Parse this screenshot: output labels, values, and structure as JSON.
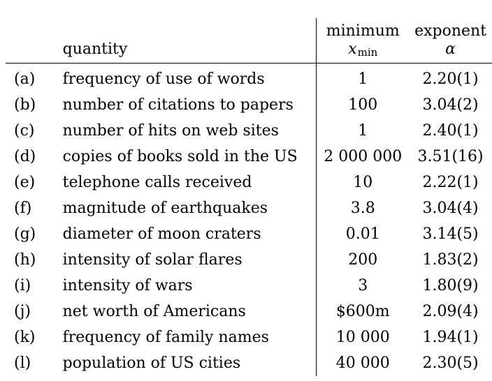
{
  "headers": {
    "label": "",
    "quantity": "quantity",
    "xmin_top": "minimum",
    "xmin_symbol": "x",
    "xmin_subscript": "min",
    "alpha_top": "exponent",
    "alpha_symbol": "α"
  },
  "rows": [
    {
      "label": "(a)",
      "quantity": "frequency of use of words",
      "xmin": "1",
      "alpha": "2.20(1)"
    },
    {
      "label": "(b)",
      "quantity": "number of citations to papers",
      "xmin": "100",
      "alpha": "3.04(2)"
    },
    {
      "label": "(c)",
      "quantity": "number of hits on web sites",
      "xmin": "1",
      "alpha": "2.40(1)"
    },
    {
      "label": "(d)",
      "quantity": "copies of books sold in the US",
      "xmin": "2 000 000",
      "alpha": "3.51(16)"
    },
    {
      "label": "(e)",
      "quantity": "telephone calls received",
      "xmin": "10",
      "alpha": "2.22(1)"
    },
    {
      "label": "(f)",
      "quantity": "magnitude of earthquakes",
      "xmin": "3.8",
      "alpha": "3.04(4)"
    },
    {
      "label": "(g)",
      "quantity": "diameter of moon craters",
      "xmin": "0.01",
      "alpha": "3.14(5)"
    },
    {
      "label": "(h)",
      "quantity": "intensity of solar flares",
      "xmin": "200",
      "alpha": "1.83(2)"
    },
    {
      "label": "(i)",
      "quantity": "intensity of wars",
      "xmin": "3",
      "alpha": "1.80(9)"
    },
    {
      "label": "(j)",
      "quantity": "net worth of Americans",
      "xmin": "$600m",
      "alpha": "2.09(4)"
    },
    {
      "label": "(k)",
      "quantity": "frequency of family names",
      "xmin": "10 000",
      "alpha": "1.94(1)"
    },
    {
      "label": "(l)",
      "quantity": "population of US cities",
      "xmin": "40 000",
      "alpha": "2.30(5)"
    }
  ]
}
